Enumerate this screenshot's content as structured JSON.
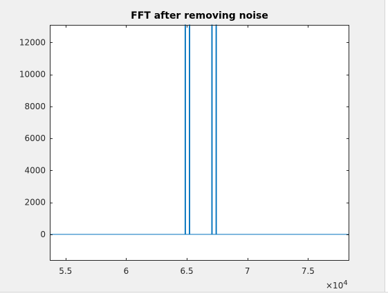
{
  "chart_data": {
    "type": "line",
    "title": "FFT after removing noise",
    "xlabel": "",
    "ylabel": "",
    "x_exponent_label": "×10",
    "x_exponent": "4",
    "xlim": [
      5.37,
      7.84
    ],
    "ylim": [
      -1650,
      13100
    ],
    "xticks": [
      5.5,
      6,
      6.5,
      7,
      7.5
    ],
    "xtick_labels": [
      "5.5",
      "6",
      "6.5",
      "7",
      "7.5"
    ],
    "yticks": [
      0,
      2000,
      4000,
      6000,
      8000,
      10000,
      12000
    ],
    "ytick_labels": [
      "0",
      "2000",
      "4000",
      "6000",
      "8000",
      "10000",
      "12000"
    ],
    "grid": false,
    "series_color": "#0072bd",
    "series": [
      {
        "x": [
          5.37,
          6.485,
          6.485,
          6.49,
          6.49,
          6.52,
          6.52,
          6.525,
          6.525,
          6.705,
          6.705,
          6.71,
          6.71,
          6.74,
          6.74,
          6.745,
          6.745,
          7.84
        ],
        "y": [
          0,
          0,
          13100,
          13100,
          0,
          0,
          13100,
          13100,
          0,
          0,
          13100,
          13100,
          0,
          0,
          13100,
          13100,
          0,
          0
        ]
      }
    ]
  }
}
